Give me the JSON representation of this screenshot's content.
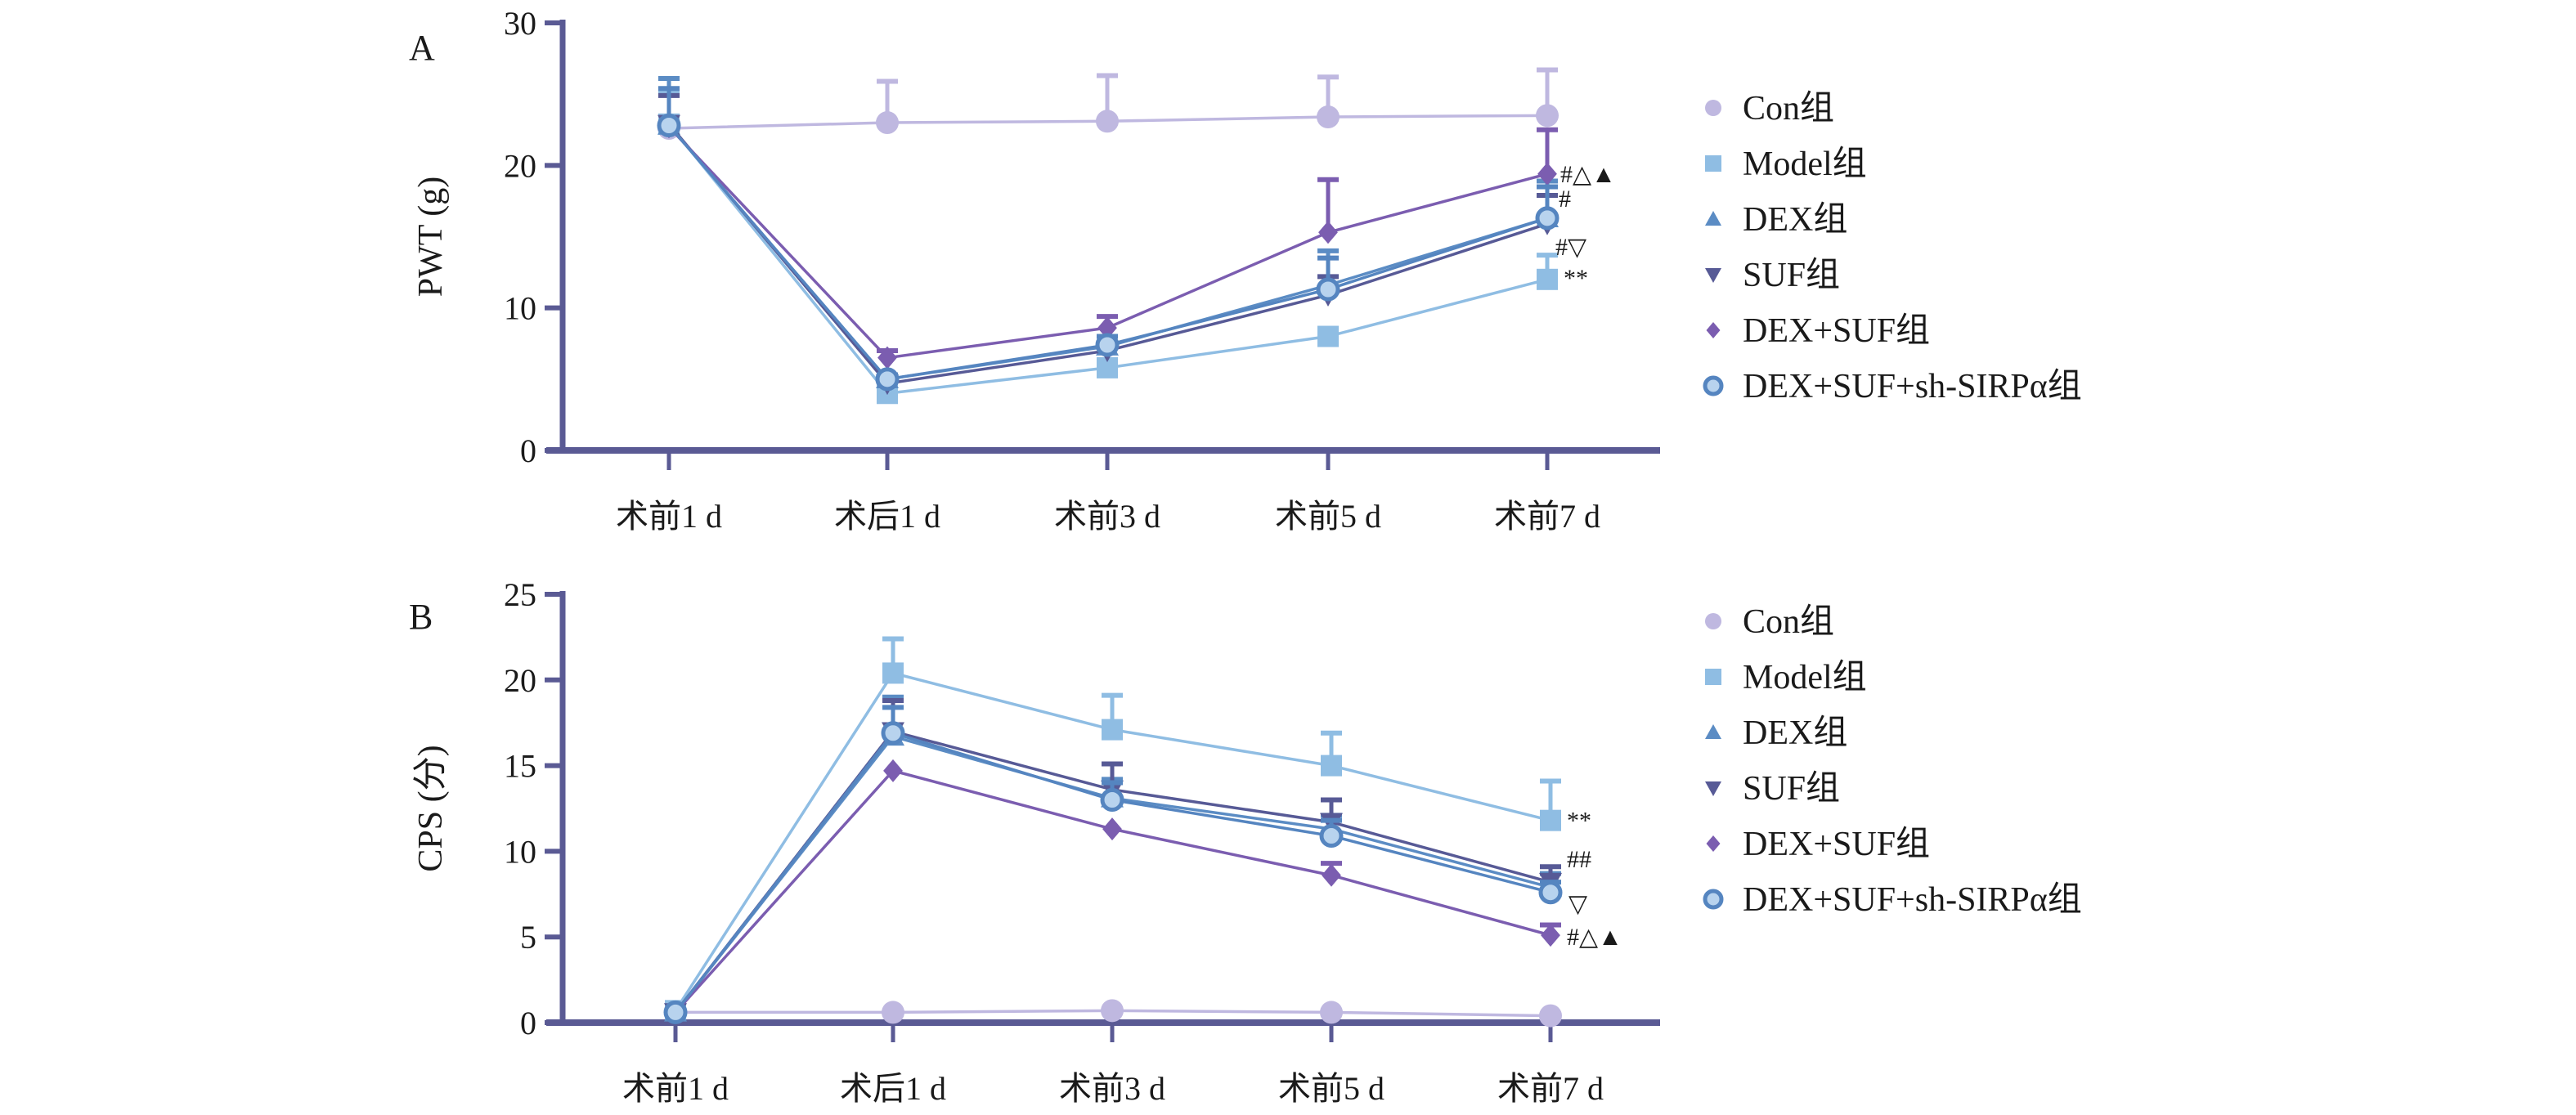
{
  "chart_data": [
    {
      "panel": "A",
      "type": "line",
      "title": "",
      "xlabel": "",
      "ylabel": "PWT (g)",
      "ylim": [
        0,
        30
      ],
      "yticks": [
        0,
        10,
        20,
        30
      ],
      "categories": [
        "术前1 d",
        "术后1 d",
        "术前3 d",
        "术前5 d",
        "术前7 d"
      ],
      "grid": false,
      "legend_position": "right",
      "series": [
        {
          "name": "Con组",
          "marker": "circle",
          "color": "#bfb8e0",
          "values": [
            22.6,
            23.0,
            23.1,
            23.4,
            23.5
          ],
          "error": [
            2.5,
            2.9,
            3.2,
            2.8,
            3.2
          ]
        },
        {
          "name": "Model组",
          "marker": "square",
          "color": "#8fbde3",
          "values": [
            22.9,
            4.0,
            5.8,
            8.0,
            12.0
          ],
          "error": [
            2.3,
            0.0,
            0.0,
            0.5,
            1.7
          ]
        },
        {
          "name": "DEX组",
          "marker": "triangle-up",
          "color": "#5b8cc4",
          "values": [
            22.8,
            5.0,
            7.3,
            11.6,
            16.3
          ],
          "error": [
            3.3,
            0.3,
            0.7,
            2.4,
            2.6
          ]
        },
        {
          "name": "SUF组",
          "marker": "triangle-down",
          "color": "#575a96",
          "values": [
            22.9,
            4.7,
            7.0,
            10.9,
            15.9
          ],
          "error": [
            2.0,
            0.2,
            0.4,
            1.3,
            2.0
          ]
        },
        {
          "name": "DEX+SUF组",
          "marker": "diamond",
          "color": "#7b5db0",
          "values": [
            22.7,
            6.5,
            8.6,
            15.3,
            19.4
          ],
          "error": [
            0.0,
            0.5,
            0.8,
            3.7,
            3.1
          ]
        },
        {
          "name": "DEX+SUF+sh-SIRPα组",
          "marker": "ring",
          "color": "#5585c0",
          "values": [
            22.8,
            5.0,
            7.4,
            11.3,
            16.3
          ],
          "error": [
            2.6,
            0.3,
            0.6,
            2.2,
            2.2
          ]
        }
      ],
      "annotations": [
        {
          "series": "DEX+SUF组",
          "category": "术前7 d",
          "text": "#△▲"
        },
        {
          "series": "DEX+SUF+sh-SIRPα组",
          "category": "术前7 d",
          "text": "#"
        },
        {
          "series": "SUF组",
          "category": "术前7 d",
          "text": "#▽"
        },
        {
          "series": "Model组",
          "category": "术前7 d",
          "text": "**"
        }
      ]
    },
    {
      "panel": "B",
      "type": "line",
      "title": "",
      "xlabel": "",
      "ylabel": "CPS (分)",
      "ylim": [
        0,
        25
      ],
      "yticks": [
        0,
        5,
        10,
        15,
        20,
        25
      ],
      "categories": [
        "术前1 d",
        "术后1 d",
        "术前3 d",
        "术前5 d",
        "术前7 d"
      ],
      "grid": false,
      "legend_position": "right",
      "series": [
        {
          "name": "Con组",
          "marker": "circle",
          "color": "#bfb8e0",
          "values": [
            0.6,
            0.6,
            0.7,
            0.6,
            0.4
          ],
          "error": [
            0.2,
            0.1,
            0.1,
            0.1,
            0.1
          ]
        },
        {
          "name": "Model组",
          "marker": "square",
          "color": "#8fbde3",
          "values": [
            0.7,
            20.4,
            17.1,
            15.0,
            11.8
          ],
          "error": [
            0.3,
            2.0,
            2.0,
            1.9,
            2.3
          ]
        },
        {
          "name": "DEX组",
          "marker": "triangle-up",
          "color": "#5b8cc4",
          "values": [
            0.6,
            16.7,
            13.1,
            11.3,
            7.9
          ],
          "error": [
            0.0,
            2.3,
            1.1,
            0.8,
            0.8
          ]
        },
        {
          "name": "SUF组",
          "marker": "triangle-down",
          "color": "#575a96",
          "values": [
            0.6,
            17.0,
            13.6,
            11.7,
            8.2
          ],
          "error": [
            0.0,
            1.8,
            1.5,
            1.3,
            0.9
          ]
        },
        {
          "name": "DEX+SUF组",
          "marker": "diamond",
          "color": "#7b5db0",
          "values": [
            0.6,
            14.7,
            11.3,
            8.6,
            5.1
          ],
          "error": [
            0.0,
            0.0,
            0.0,
            0.7,
            0.6
          ]
        },
        {
          "name": "DEX+SUF+sh-SIRPα组",
          "marker": "ring",
          "color": "#5585c0",
          "values": [
            0.6,
            16.9,
            13.0,
            10.9,
            7.6
          ],
          "error": [
            0.0,
            1.5,
            1.0,
            0.9,
            0.6
          ]
        }
      ],
      "annotations": [
        {
          "series": "Model组",
          "category": "术前7 d",
          "text": "**"
        },
        {
          "series": "SUF组",
          "category": "术前7 d",
          "text": "##"
        },
        {
          "series": "DEX+SUF+sh-SIRPα组",
          "category": "术前7 d",
          "text": "▽"
        },
        {
          "series": "DEX+SUF组",
          "category": "术前7 d",
          "text": "#△▲"
        }
      ]
    }
  ],
  "axis_color": "#5a5a94"
}
